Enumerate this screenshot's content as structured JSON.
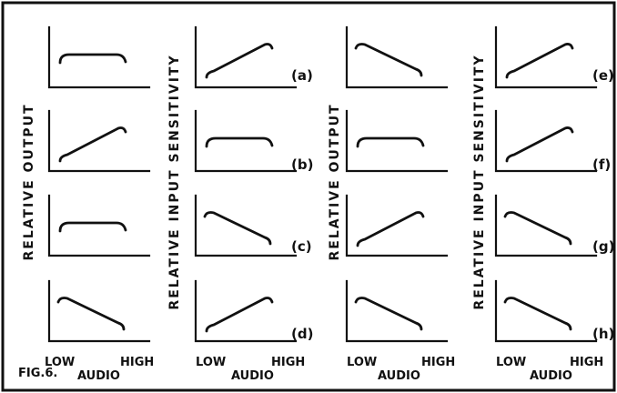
{
  "figure_label": "FIG.6.",
  "columns": [
    {
      "side_label": "RELATIVE OUTPUT",
      "x_low": "LOW",
      "x_high": "HIGH",
      "x_title": "AUDIO"
    },
    {
      "side_label": "RELATIVE INPUT SENSITIVITY",
      "x_low": "LOW",
      "x_high": "HIGH",
      "x_title": "AUDIO"
    },
    {
      "side_label": "RELATIVE OUTPUT",
      "x_low": "LOW",
      "x_high": "HIGH",
      "x_title": "AUDIO"
    },
    {
      "side_label": "RELATIVE INPUT SENSITIVITY",
      "x_low": "LOW",
      "x_high": "HIGH",
      "x_title": "AUDIO"
    }
  ],
  "row_labels": [
    {
      "left": "(a)",
      "right": "(e)"
    },
    {
      "left": "(b)",
      "right": "(f)"
    },
    {
      "left": "(c)",
      "right": "(g)"
    },
    {
      "left": "(d)",
      "right": "(h)"
    }
  ],
  "plots": [
    [
      "flat",
      "rising",
      "falling",
      "rising"
    ],
    [
      "rising",
      "flat",
      "flat",
      "rising"
    ],
    [
      "flat",
      "falling",
      "rising",
      "falling"
    ],
    [
      "falling",
      "rising",
      "falling",
      "falling"
    ]
  ]
}
